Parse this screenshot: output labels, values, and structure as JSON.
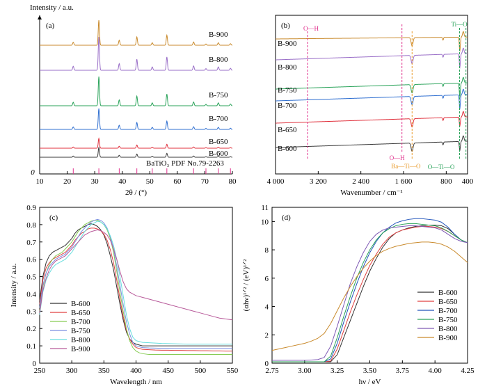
{
  "chart_data": [
    {
      "type": "line",
      "panel": "(a)",
      "xlabel": "2θ / (°)",
      "ylabel": "Intensity / a.u.",
      "xlim": [
        10,
        80
      ],
      "xticks": [
        10,
        20,
        30,
        40,
        50,
        60,
        70,
        80
      ],
      "origin_label": "0",
      "reference_label": "BaTiO₃ PDF No.79-2263",
      "reference_peaks": [
        22.2,
        31.5,
        38.9,
        45.3,
        50.9,
        56.2,
        65.9,
        70.4,
        74.9,
        79.3
      ],
      "colors": [
        "#3a3a3a",
        "#e0303c",
        "#2f6fd0",
        "#2aa35a",
        "#9a6fc8",
        "#c98a2c"
      ],
      "series": [
        {
          "name": "B-600"
        },
        {
          "name": "B-650"
        },
        {
          "name": "B-700"
        },
        {
          "name": "B-750"
        },
        {
          "name": "B-800"
        },
        {
          "name": "B-900"
        }
      ],
      "peak_positions": [
        22.2,
        31.5,
        38.9,
        45.3,
        50.9,
        56.2,
        65.9,
        70.4,
        74.9,
        79.3
      ],
      "peak_relative": [
        0.12,
        1.0,
        0.2,
        0.33,
        0.1,
        0.4,
        0.13,
        0.05,
        0.1,
        0.06
      ]
    },
    {
      "type": "line",
      "panel": "(b)",
      "xlabel": "Wavenumber / cm⁻¹",
      "xlim": [
        4000,
        400
      ],
      "xticks": [
        4000,
        3200,
        2400,
        1600,
        800,
        400
      ],
      "xtick_labels": [
        "4 000",
        "3 200",
        "2 400",
        "1 600",
        "800",
        "400"
      ],
      "colors": [
        "#3a3a3a",
        "#e0303c",
        "#2f6fd0",
        "#2aa35a",
        "#9a6fc8",
        "#c98a2c"
      ],
      "series": [
        {
          "name": "B-600"
        },
        {
          "name": "B-650"
        },
        {
          "name": "B-700"
        },
        {
          "name": "B-750"
        },
        {
          "name": "B-800"
        },
        {
          "name": "B-900"
        }
      ],
      "annotations": [
        {
          "text": "O—H",
          "x": 3400,
          "color": "#e0308c"
        },
        {
          "text": "O—H",
          "x": 1630,
          "color": "#e0308c"
        },
        {
          "text": "Ba—Ti—O",
          "x": 1440,
          "color": "#e89a2a"
        },
        {
          "text": "Ti—O",
          "x": 550,
          "color": "#2aa35a"
        },
        {
          "text": "O—Ti—O",
          "x": 430,
          "color": "#2aa35a"
        }
      ]
    },
    {
      "type": "line",
      "panel": "(c)",
      "xlabel": "Wavelength / nm",
      "ylabel": "Intensity / a.u.",
      "xlim": [
        250,
        550
      ],
      "ylim": [
        0,
        0.9
      ],
      "xticks": [
        250,
        300,
        350,
        400,
        450,
        500,
        550
      ],
      "yticks": [
        0,
        0.1,
        0.2,
        0.3,
        0.4,
        0.5,
        0.6,
        0.7,
        0.8,
        0.9
      ],
      "x": [
        250,
        255,
        260,
        265,
        270,
        275,
        280,
        285,
        290,
        295,
        300,
        305,
        310,
        315,
        320,
        325,
        330,
        335,
        340,
        345,
        350,
        355,
        360,
        365,
        370,
        375,
        380,
        385,
        390,
        395,
        400,
        405,
        410,
        420,
        430,
        440,
        450,
        460,
        470,
        480,
        490,
        500,
        510,
        520,
        530,
        540,
        550
      ],
      "series": [
        {
          "name": "B-600",
          "color": "#333333",
          "values": [
            0.36,
            0.5,
            0.58,
            0.62,
            0.64,
            0.65,
            0.66,
            0.67,
            0.68,
            0.7,
            0.72,
            0.75,
            0.77,
            0.78,
            0.79,
            0.8,
            0.805,
            0.8,
            0.79,
            0.77,
            0.74,
            0.69,
            0.62,
            0.54,
            0.44,
            0.34,
            0.25,
            0.18,
            0.14,
            0.12,
            0.11,
            0.105,
            0.1,
            0.1,
            0.1,
            0.1,
            0.1,
            0.1,
            0.1,
            0.1,
            0.1,
            0.1,
            0.1,
            0.1,
            0.1,
            0.1,
            0.1
          ]
        },
        {
          "name": "B-650",
          "color": "#e04040",
          "values": [
            0.34,
            0.48,
            0.55,
            0.58,
            0.6,
            0.61,
            0.62,
            0.63,
            0.64,
            0.66,
            0.68,
            0.71,
            0.73,
            0.75,
            0.76,
            0.775,
            0.78,
            0.78,
            0.775,
            0.765,
            0.745,
            0.71,
            0.655,
            0.58,
            0.48,
            0.37,
            0.27,
            0.19,
            0.14,
            0.11,
            0.09,
            0.085,
            0.08,
            0.078,
            0.076,
            0.075,
            0.075,
            0.074,
            0.074,
            0.073,
            0.073,
            0.072,
            0.072,
            0.071,
            0.071,
            0.07,
            0.07
          ]
        },
        {
          "name": "B-700",
          "color": "#88cc55",
          "values": [
            0.3,
            0.44,
            0.52,
            0.57,
            0.6,
            0.62,
            0.63,
            0.64,
            0.66,
            0.68,
            0.7,
            0.73,
            0.76,
            0.78,
            0.8,
            0.81,
            0.82,
            0.825,
            0.825,
            0.815,
            0.8,
            0.77,
            0.72,
            0.64,
            0.53,
            0.41,
            0.3,
            0.2,
            0.13,
            0.09,
            0.07,
            0.06,
            0.055,
            0.05,
            0.05,
            0.05,
            0.05,
            0.05,
            0.05,
            0.05,
            0.05,
            0.05,
            0.05,
            0.05,
            0.05,
            0.05,
            0.05
          ]
        },
        {
          "name": "B-750",
          "color": "#7a8fe0",
          "values": [
            0.32,
            0.45,
            0.52,
            0.56,
            0.58,
            0.6,
            0.61,
            0.62,
            0.63,
            0.65,
            0.67,
            0.7,
            0.73,
            0.76,
            0.78,
            0.8,
            0.815,
            0.825,
            0.83,
            0.825,
            0.81,
            0.78,
            0.73,
            0.66,
            0.56,
            0.45,
            0.34,
            0.24,
            0.17,
            0.12,
            0.1,
            0.095,
            0.09,
            0.088,
            0.087,
            0.086,
            0.086,
            0.085,
            0.085,
            0.085,
            0.085,
            0.085,
            0.085,
            0.085,
            0.085,
            0.085,
            0.085
          ]
        },
        {
          "name": "B-800",
          "color": "#66dddd",
          "values": [
            0.28,
            0.41,
            0.48,
            0.52,
            0.55,
            0.57,
            0.58,
            0.59,
            0.6,
            0.62,
            0.64,
            0.67,
            0.7,
            0.73,
            0.76,
            0.78,
            0.8,
            0.81,
            0.82,
            0.815,
            0.8,
            0.775,
            0.735,
            0.68,
            0.6,
            0.5,
            0.39,
            0.28,
            0.2,
            0.15,
            0.13,
            0.125,
            0.12,
            0.118,
            0.116,
            0.114,
            0.113,
            0.112,
            0.111,
            0.11,
            0.11,
            0.11,
            0.11,
            0.11,
            0.11,
            0.11,
            0.11
          ]
        },
        {
          "name": "B-900",
          "color": "#b85a9a",
          "values": [
            0.29,
            0.42,
            0.49,
            0.54,
            0.57,
            0.59,
            0.6,
            0.61,
            0.62,
            0.64,
            0.66,
            0.68,
            0.7,
            0.72,
            0.74,
            0.75,
            0.76,
            0.765,
            0.77,
            0.765,
            0.755,
            0.74,
            0.71,
            0.66,
            0.6,
            0.53,
            0.47,
            0.43,
            0.41,
            0.4,
            0.39,
            0.385,
            0.38,
            0.37,
            0.36,
            0.35,
            0.34,
            0.33,
            0.32,
            0.31,
            0.3,
            0.29,
            0.28,
            0.27,
            0.26,
            0.255,
            0.25
          ]
        }
      ]
    },
    {
      "type": "line",
      "panel": "(d)",
      "xlabel": "hν / eV",
      "ylabel": "(αhν)¹ᐟ² / (eV)¹ᐟ²",
      "xlim": [
        2.75,
        4.25
      ],
      "ylim": [
        0,
        11
      ],
      "xticks": [
        2.75,
        3.0,
        3.25,
        3.5,
        3.75,
        4.0,
        4.25
      ],
      "xtick_labels": [
        "2.75",
        "3.00",
        "3.25",
        "3.50",
        "3.75",
        "4.00",
        "4.25"
      ],
      "yticks": [
        0,
        2,
        4,
        6,
        8,
        10,
        11
      ],
      "x": [
        2.75,
        2.8,
        2.85,
        2.9,
        2.95,
        3.0,
        3.05,
        3.1,
        3.15,
        3.2,
        3.25,
        3.3,
        3.35,
        3.4,
        3.45,
        3.5,
        3.55,
        3.6,
        3.65,
        3.7,
        3.75,
        3.8,
        3.85,
        3.9,
        3.95,
        4.0,
        4.05,
        4.1,
        4.15,
        4.2,
        4.25
      ],
      "series": [
        {
          "name": "B-600",
          "color": "#333333",
          "values": [
            0.1,
            0.1,
            0.1,
            0.1,
            0.1,
            0.1,
            0.1,
            0.1,
            0.1,
            0.1,
            0.6,
            1.8,
            3.0,
            4.2,
            5.4,
            6.5,
            7.4,
            8.2,
            8.8,
            9.2,
            9.4,
            9.55,
            9.65,
            9.7,
            9.75,
            9.75,
            9.7,
            9.5,
            9.1,
            8.7,
            8.5
          ]
        },
        {
          "name": "B-650",
          "color": "#e04040",
          "values": [
            0.1,
            0.1,
            0.1,
            0.1,
            0.1,
            0.1,
            0.1,
            0.1,
            0.1,
            0.15,
            1.0,
            2.3,
            3.6,
            4.8,
            5.9,
            6.9,
            7.7,
            8.4,
            8.9,
            9.2,
            9.4,
            9.5,
            9.6,
            9.65,
            9.65,
            9.6,
            9.5,
            9.3,
            9.0,
            8.7,
            8.5
          ]
        },
        {
          "name": "B-700",
          "color": "#2255bb",
          "values": [
            0.1,
            0.1,
            0.1,
            0.1,
            0.1,
            0.1,
            0.1,
            0.1,
            0.1,
            0.3,
            1.4,
            2.9,
            4.3,
            5.6,
            6.8,
            7.8,
            8.6,
            9.2,
            9.6,
            9.9,
            10.05,
            10.15,
            10.2,
            10.2,
            10.15,
            10.1,
            9.95,
            9.6,
            9.1,
            8.7,
            8.5
          ]
        },
        {
          "name": "B-750",
          "color": "#2aa35a",
          "values": [
            0.1,
            0.1,
            0.1,
            0.1,
            0.1,
            0.1,
            0.1,
            0.1,
            0.1,
            0.5,
            1.8,
            3.3,
            4.7,
            6.0,
            7.1,
            8.0,
            8.7,
            9.2,
            9.5,
            9.7,
            9.8,
            9.85,
            9.85,
            9.8,
            9.75,
            9.7,
            9.55,
            9.3,
            9.0,
            8.7,
            8.5
          ]
        },
        {
          "name": "B-800",
          "color": "#7f5ab5",
          "values": [
            0.2,
            0.2,
            0.2,
            0.2,
            0.2,
            0.2,
            0.22,
            0.25,
            0.4,
            1.2,
            2.6,
            4.1,
            5.6,
            6.8,
            7.8,
            8.6,
            9.1,
            9.4,
            9.55,
            9.6,
            9.65,
            9.7,
            9.7,
            9.65,
            9.6,
            9.55,
            9.4,
            9.1,
            8.8,
            8.6,
            8.5
          ]
        },
        {
          "name": "B-900",
          "color": "#c98a2c",
          "values": [
            0.9,
            1.0,
            1.1,
            1.2,
            1.3,
            1.4,
            1.55,
            1.75,
            2.1,
            2.8,
            3.7,
            4.6,
            5.4,
            6.1,
            6.7,
            7.2,
            7.6,
            7.9,
            8.1,
            8.25,
            8.35,
            8.45,
            8.5,
            8.55,
            8.55,
            8.5,
            8.4,
            8.2,
            7.9,
            7.5,
            7.1
          ]
        }
      ]
    }
  ]
}
